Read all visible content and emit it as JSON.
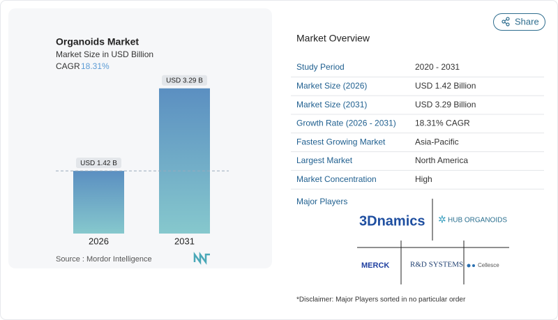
{
  "chart_data": {
    "type": "bar",
    "title": "Organoids Market",
    "subtitle": "Market Size in USD Billion",
    "cagr_label": "CAGR",
    "cagr": "18.31%",
    "categories": [
      "2026",
      "2031"
    ],
    "values": [
      1.42,
      3.29
    ],
    "value_labels": [
      "USD 1.42 B",
      "USD 3.29 B"
    ],
    "colors": [
      "#5b8fc1",
      "#86c8cd"
    ],
    "source": "Source :  Mordor Intelligence"
  },
  "share": "Share",
  "overview": {
    "title": "Market Overview",
    "rows": [
      [
        "Study Period",
        "2020 - 2031"
      ],
      [
        "Market Size (2026)",
        "USD 1.42 Billion"
      ],
      [
        "Market Size (2031)",
        "USD 3.29 Billion"
      ],
      [
        "Growth Rate (2026 - 2031)",
        "18.31% CAGR"
      ],
      [
        "Fastest Growing Market",
        "Asia-Pacific"
      ],
      [
        "Largest Market",
        "North America"
      ],
      [
        "Market Concentration",
        "High"
      ]
    ]
  },
  "players": {
    "title": "Major Players",
    "logos": [
      "3Dnamics",
      "HUB ORGANOIDS",
      "MERCK",
      "R&D SYSTEMS",
      "Cellesce"
    ]
  },
  "disclaimer": "*Disclaimer: Major Players sorted in no particular order"
}
